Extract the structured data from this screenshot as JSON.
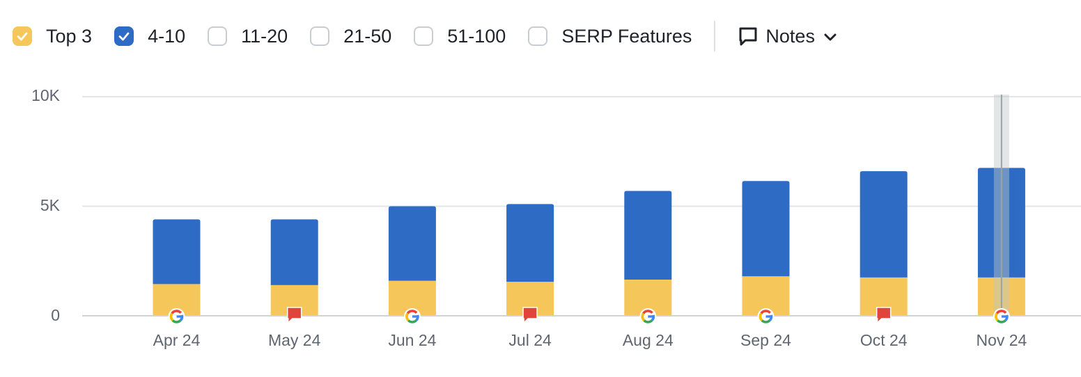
{
  "legend": {
    "items": [
      {
        "label": "Top 3",
        "checked": true,
        "color": "#f5c659",
        "name": "legend-top3"
      },
      {
        "label": "4-10",
        "checked": true,
        "color": "#2d6bc4",
        "name": "legend-4-10"
      },
      {
        "label": "11-20",
        "checked": false,
        "color": "#ffffff",
        "name": "legend-11-20"
      },
      {
        "label": "21-50",
        "checked": false,
        "color": "#ffffff",
        "name": "legend-21-50"
      },
      {
        "label": "51-100",
        "checked": false,
        "color": "#ffffff",
        "name": "legend-51-100"
      },
      {
        "label": "SERP Features",
        "checked": false,
        "color": "#ffffff",
        "name": "legend-serp-features"
      }
    ],
    "notes_label": "Notes",
    "notes_icon": "speech-bubble-icon",
    "dropdown_icon": "chevron-down-icon"
  },
  "chart_data": {
    "type": "bar",
    "stacked": true,
    "categories": [
      "Apr 24",
      "May 24",
      "Jun 24",
      "Jul 24",
      "Aug 24",
      "Sep 24",
      "Oct 24",
      "Nov 24"
    ],
    "series": [
      {
        "name": "Top 3",
        "color": "#f5c659",
        "values": [
          1450,
          1400,
          1600,
          1550,
          1650,
          1800,
          1750,
          1750
        ]
      },
      {
        "name": "4-10",
        "color": "#2d6bc4",
        "values": [
          2950,
          3000,
          3400,
          3550,
          4050,
          4350,
          4850,
          5000
        ]
      }
    ],
    "yticks": [
      "10K",
      "5K",
      "0"
    ],
    "ylim": [
      0,
      10000
    ],
    "grid": true,
    "markers": [
      "google-update-icon",
      "note-flag-icon",
      "google-update-icon",
      "note-flag-icon",
      "google-update-icon",
      "google-update-icon",
      "note-flag-icon",
      "google-update-icon"
    ],
    "highlighted_category": "Nov 24"
  }
}
